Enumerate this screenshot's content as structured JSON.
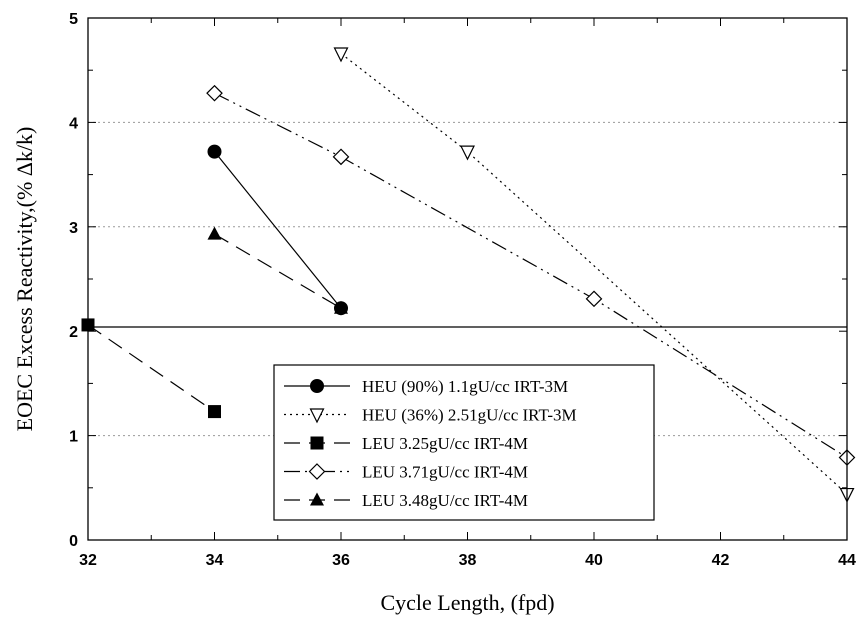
{
  "chart_data": {
    "type": "line",
    "title": "",
    "xlabel": "Cycle Length, (fpd)",
    "ylabel": "EOEC Excess Reactivity,(% Δk/k)",
    "xlim": [
      32,
      44
    ],
    "ylim": [
      0,
      5
    ],
    "x_ticks": [
      "32",
      "34",
      "36",
      "38",
      "40",
      "42",
      "44"
    ],
    "y_ticks": [
      "0",
      "1",
      "2",
      "3",
      "4",
      "5"
    ],
    "grid": "horizontal dotted at y=1, 3, 4",
    "reference_line": 2.04,
    "legend_position": "bottom-center",
    "series": [
      {
        "name": "HEU (90%) 1.1gU/cc IRT-3M",
        "marker": "circle-filled",
        "line": "solid",
        "x": [
          34,
          36
        ],
        "y": [
          3.72,
          2.22
        ]
      },
      {
        "name": "HEU (36%) 2.51gU/cc IRT-3M",
        "marker": "triangle-down-open",
        "line": "dotted",
        "x": [
          36,
          38,
          44
        ],
        "y": [
          4.66,
          3.72,
          0.44
        ]
      },
      {
        "name": "LEU 3.25gU/cc IRT-4M",
        "marker": "square-filled",
        "line": "long-dash",
        "x": [
          32,
          34
        ],
        "y": [
          2.06,
          1.23
        ]
      },
      {
        "name": "LEU 3.71gU/cc IRT-4M",
        "marker": "diamond-open",
        "line": "dash-dot-dot",
        "x": [
          34,
          36,
          40,
          44
        ],
        "y": [
          4.28,
          3.67,
          2.31,
          0.79
        ]
      },
      {
        "name": "LEU 3.48gU/cc IRT-4M",
        "marker": "triangle-up-filled",
        "line": "long-dash",
        "x": [
          34,
          36
        ],
        "y": [
          2.93,
          2.22
        ]
      }
    ],
    "colors": {
      "foreground": "#000000",
      "grid": "#9a9a9a",
      "background": "#ffffff"
    }
  }
}
